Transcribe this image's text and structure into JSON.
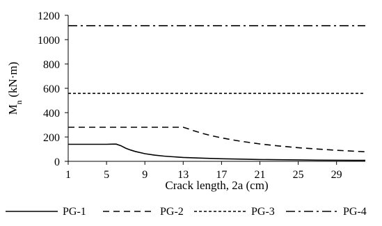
{
  "chart_data": {
    "type": "line",
    "title": "",
    "xlabel": "Crack length, 2a (cm)",
    "ylabel": {
      "main": "M",
      "sub": "n",
      "unit": " (kN·m)"
    },
    "xlim": [
      1,
      32
    ],
    "ylim": [
      0,
      1200
    ],
    "x_ticks": [
      1,
      5,
      9,
      13,
      17,
      21,
      25,
      29
    ],
    "y_ticks": [
      0,
      200,
      400,
      600,
      800,
      1000,
      1200
    ],
    "grid": false,
    "legend_position": "bottom",
    "series": [
      {
        "name": "PG-1",
        "style": "solid",
        "x": [
          1,
          2,
          3,
          4,
          5,
          5.5,
          6,
          6.5,
          7,
          7.5,
          8,
          9,
          10,
          11,
          12,
          13,
          14,
          15,
          17,
          19,
          21,
          23,
          25,
          27,
          29,
          32
        ],
        "y": [
          140,
          140,
          140,
          140,
          140,
          141,
          142,
          128,
          108,
          93,
          81,
          63,
          51,
          43,
          37,
          32,
          29,
          26,
          21,
          18,
          15,
          13,
          12,
          10,
          9,
          8
        ]
      },
      {
        "name": "PG-2",
        "style": "dashed",
        "x": [
          1,
          4,
          7,
          10,
          12,
          13,
          13.5,
          14,
          15,
          16,
          17,
          18,
          19,
          21,
          23,
          25,
          27,
          29,
          32
        ],
        "y": [
          280,
          280,
          280,
          280,
          280,
          280,
          268,
          254,
          230,
          210,
          193,
          178,
          165,
          143,
          126,
          112,
          101,
          91,
          78
        ]
      },
      {
        "name": "PG-3",
        "style": "short-dashed",
        "x": [
          1,
          32
        ],
        "y": [
          558,
          558
        ]
      },
      {
        "name": "PG-4",
        "style": "dash-dot",
        "x": [
          1,
          32
        ],
        "y": [
          1115,
          1115
        ]
      }
    ]
  }
}
